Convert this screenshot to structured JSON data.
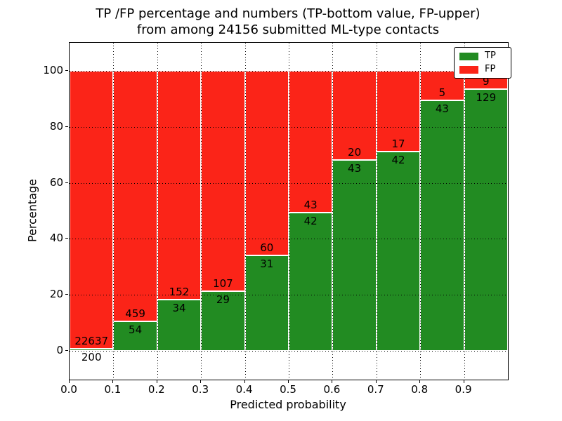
{
  "chart_data": {
    "type": "bar",
    "stacked": true,
    "normalized": "percent",
    "title_line1": "TP /FP percentage and numbers (TP-bottom value, FP-upper)",
    "title_line2": "from among 24156 submitted ML-type contacts",
    "title": "TP /FP percentage and numbers (TP-bottom value, FP-upper)\nfrom among 24156 submitted ML-type contacts",
    "total_contacts": 24156,
    "xlabel": "Predicted probability",
    "ylabel": "Percentage",
    "xlim": [
      0.0,
      1.0
    ],
    "ylim": [
      -10.3,
      110
    ],
    "bin_width": 0.1,
    "x_tick_labels": [
      "0.0",
      "0.1",
      "0.2",
      "0.3",
      "0.4",
      "0.5",
      "0.6",
      "0.7",
      "0.8",
      "0.9"
    ],
    "y_ticks": [
      0,
      20,
      40,
      60,
      80,
      100
    ],
    "y_tick_labels": [
      "0",
      "20",
      "40",
      "60",
      "80",
      "100"
    ],
    "grid": true,
    "legend": {
      "position": "upper right",
      "entries": [
        {
          "label": "TP",
          "color": "#228b22"
        },
        {
          "label": "FP",
          "color": "#fb2418"
        }
      ]
    },
    "series": [
      {
        "name": "TP",
        "color": "#228b22",
        "counts": [
          200,
          54,
          34,
          29,
          31,
          42,
          43,
          42,
          43,
          129
        ]
      },
      {
        "name": "FP",
        "color": "#fb2418",
        "counts": [
          22637,
          459,
          152,
          107,
          60,
          43,
          20,
          17,
          5,
          9
        ]
      }
    ],
    "tp_percent_per_bin": [
      0.88,
      10.53,
      18.28,
      21.32,
      34.07,
      49.41,
      68.25,
      71.19,
      89.58,
      93.48
    ]
  }
}
